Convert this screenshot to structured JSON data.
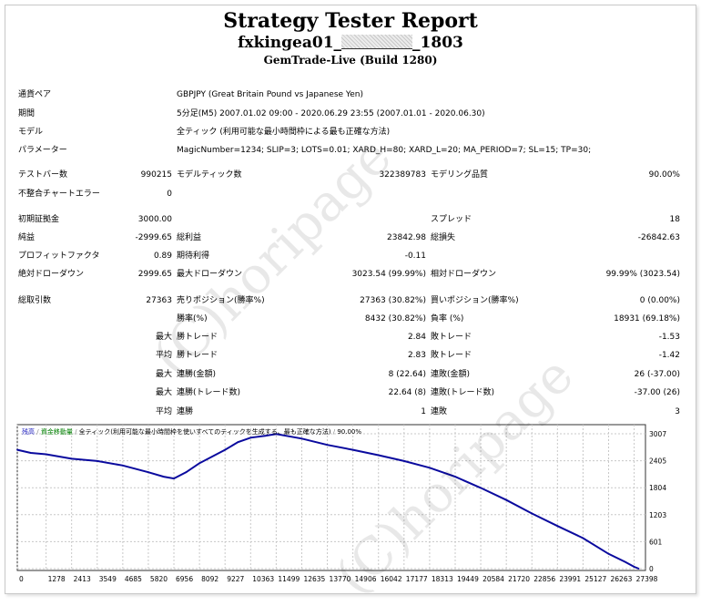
{
  "header": {
    "title": "Strategy Tester Report",
    "subtitle_prefix": "fxkingea01_",
    "subtitle_suffix": "_1803",
    "build": "GemTrade-Live (Build 1280)"
  },
  "info": {
    "pair_label": "通貨ペア",
    "pair_value": "GBPJPY (Great Britain Pound vs Japanese Yen)",
    "period_label": "期間",
    "period_value": "5分足(M5) 2007.01.02 09:00 - 2020.06.29 23:55 (2007.01.01 - 2020.06.30)",
    "model_label": "モデル",
    "model_value": "全ティック (利用可能な最小時間枠による最も正確な方法)",
    "params_label": "パラメーター",
    "params_value": "MagicNumber=1234; SLIP=3; LOTS=0.01; XARD_H=80; XARD_L=20; MA_PERIOD=7; SL=15; TP=30;"
  },
  "stats": {
    "bars_label": "テストバー数",
    "bars_value": "990215",
    "ticks_label": "モデルティック数",
    "ticks_value": "322389783",
    "quality_label": "モデリング品質",
    "quality_value": "90.00%",
    "errors_label": "不整合チャートエラー",
    "errors_value": "0",
    "deposit_label": "初期証拠金",
    "deposit_value": "3000.00",
    "spread_label": "スプレッド",
    "spread_value": "18",
    "net_label": "純益",
    "net_value": "-2999.65",
    "gross_profit_label": "総利益",
    "gross_profit_value": "23842.98",
    "gross_loss_label": "総損失",
    "gross_loss_value": "-26842.63",
    "pf_label": "プロフィットファクタ",
    "pf_value": "0.89",
    "expected_label": "期待利得",
    "expected_value": "-0.11",
    "abs_dd_label": "絶対ドローダウン",
    "abs_dd_value": "2999.65",
    "max_dd_label": "最大ドローダウン",
    "max_dd_value": "3023.54 (99.99%)",
    "rel_dd_label": "相対ドローダウン",
    "rel_dd_value": "99.99% (3023.54)",
    "trades_label": "総取引数",
    "trades_value": "27363",
    "short_label": "売りポジション(勝率%)",
    "short_value": "27363 (30.82%)",
    "long_label": "買いポジション(勝率%)",
    "long_value": "0 (0.00%)",
    "winrate_label": "勝率(%)",
    "winrate_value": "8432 (30.82%)",
    "lossrate_label": "負率 (%)",
    "lossrate_value": "18931 (69.18%)",
    "max_prefix": "最大",
    "avg_prefix": "平均",
    "max_win_label": "勝トレード",
    "max_win_value": "2.84",
    "max_loss_label": "敗トレード",
    "max_loss_value": "-1.53",
    "avg_win_label": "勝トレード",
    "avg_win_value": "2.83",
    "avg_loss_label": "敗トレード",
    "avg_loss_value": "-1.42",
    "consec_win_amt_label": "連勝(金額)",
    "consec_win_amt_value": "8 (22.64)",
    "consec_loss_amt_label": "連敗(金額)",
    "consec_loss_amt_value": "26 (-37.00)",
    "consec_win_cnt_label": "連勝(トレード数)",
    "consec_win_cnt_value": "22.64 (8)",
    "consec_loss_cnt_label": "連敗(トレード数)",
    "consec_loss_cnt_value": "-37.00 (26)",
    "avg_consec_win_label": "連勝",
    "avg_consec_win_value": "1",
    "avg_consec_loss_label": "連敗",
    "avg_consec_loss_value": "3"
  },
  "watermark": "(C)horipage",
  "colors": {
    "line": "#0a0a9e",
    "grid": "#c8c8c8",
    "legend_blue": "#2020c0",
    "legend_green": "#008000"
  },
  "chart_data": {
    "type": "line",
    "legend": {
      "balance": "残高",
      "lots": "資金移動量",
      "model": "全ティック(利用可能な最小時間枠を使いすべてのティックを生成する、最も正確な方法)",
      "quality": "90.00%"
    },
    "x_ticks": [
      "0",
      "1278",
      "2413",
      "3549",
      "4685",
      "5820",
      "6956",
      "8092",
      "9227",
      "10363",
      "11499",
      "12635",
      "13770",
      "14906",
      "16042",
      "17177",
      "18313",
      "19449",
      "20584",
      "21720",
      "22856",
      "23991",
      "25127",
      "26263",
      "27398"
    ],
    "y_ticks": [
      "3007",
      "2405",
      "1804",
      "1203",
      "601",
      "0"
    ],
    "ylim": [
      0,
      3007
    ],
    "xlim": [
      0,
      27900
    ],
    "x": [
      0,
      600,
      1278,
      2413,
      3549,
      4685,
      5820,
      6500,
      6956,
      7500,
      8092,
      9227,
      9800,
      10363,
      11000,
      11499,
      12635,
      13770,
      14906,
      16042,
      17177,
      18313,
      19449,
      20584,
      21720,
      22856,
      23991,
      25127,
      26263,
      27000,
      27398,
      27600
    ],
    "values": [
      2650,
      2580,
      2550,
      2450,
      2400,
      2300,
      2150,
      2050,
      2010,
      2150,
      2350,
      2650,
      2820,
      2920,
      2960,
      3000,
      2900,
      2760,
      2650,
      2530,
      2400,
      2250,
      2050,
      1800,
      1530,
      1230,
      950,
      680,
      330,
      150,
      40,
      0
    ]
  }
}
